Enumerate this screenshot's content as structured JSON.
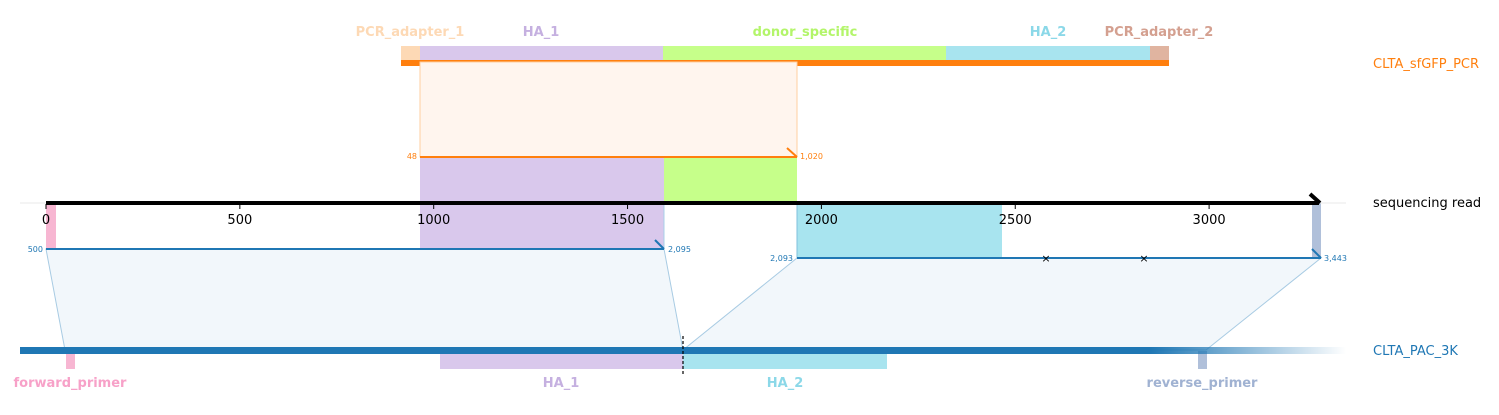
{
  "axis": {
    "ticks": [
      {
        "value": 0,
        "label": "0"
      },
      {
        "value": 500,
        "label": "500"
      },
      {
        "value": 1000,
        "label": "1000"
      },
      {
        "value": 1500,
        "label": "1500"
      },
      {
        "value": 2000,
        "label": "2000"
      },
      {
        "value": 2500,
        "label": "2500"
      },
      {
        "value": 3000,
        "label": "3000"
      }
    ]
  },
  "tracks": {
    "pcr": {
      "label": "CLTA_sfGFP_PCR",
      "color": "#ff7f0e"
    },
    "read": {
      "label": "sequencing read",
      "color": "#000000"
    },
    "reference": {
      "label": "CLTA_PAC_3K",
      "color": "#1f77b4"
    }
  },
  "pcr_features": [
    {
      "label": "PCR_adapter_1",
      "color": "#fdd9b5",
      "label_color": "#fdd9b5"
    },
    {
      "label": "HA_1",
      "color": "#d9c8ec",
      "label_color": "#c5b0e0"
    },
    {
      "label": "donor_specific",
      "color": "#c6ff8a",
      "label_color": "#b3f56a"
    },
    {
      "label": "HA_2",
      "color": "#a8e4ef",
      "label_color": "#8bd8e8"
    },
    {
      "label": "PCR_adapter_2",
      "color": "#e0b4a0",
      "label_color": "#d4a090"
    }
  ],
  "reference_features": [
    {
      "label": "forward_primer",
      "color": "#f7b6d2",
      "label_color": "#f7a1c8"
    },
    {
      "label": "HA_1",
      "color": "#d9c8ec",
      "label_color": "#c5b0e0"
    },
    {
      "label": "HA_2",
      "color": "#a8e4ef",
      "label_color": "#8bd8e8"
    },
    {
      "label": "reverse_primer",
      "color": "#b0c0da",
      "label_color": "#a0b2d2"
    }
  ],
  "alignments": [
    {
      "target": "CLTA_sfGFP_PCR",
      "start_label": "48",
      "end_label": "1,020",
      "read_start": 966,
      "read_end": 1938,
      "color": "#ff7f0e"
    },
    {
      "target": "CLTA_PAC_3K",
      "start_label": "500",
      "end_label": "2,095",
      "read_start": 0,
      "read_end": 1595,
      "color": "#1f77b4"
    },
    {
      "target": "CLTA_PAC_3K",
      "start_label": "2,093",
      "end_label": "3,443",
      "read_start": 1938,
      "read_end": 3288,
      "color": "#1f77b4",
      "mismatches": [
        2580,
        2833
      ]
    }
  ]
}
